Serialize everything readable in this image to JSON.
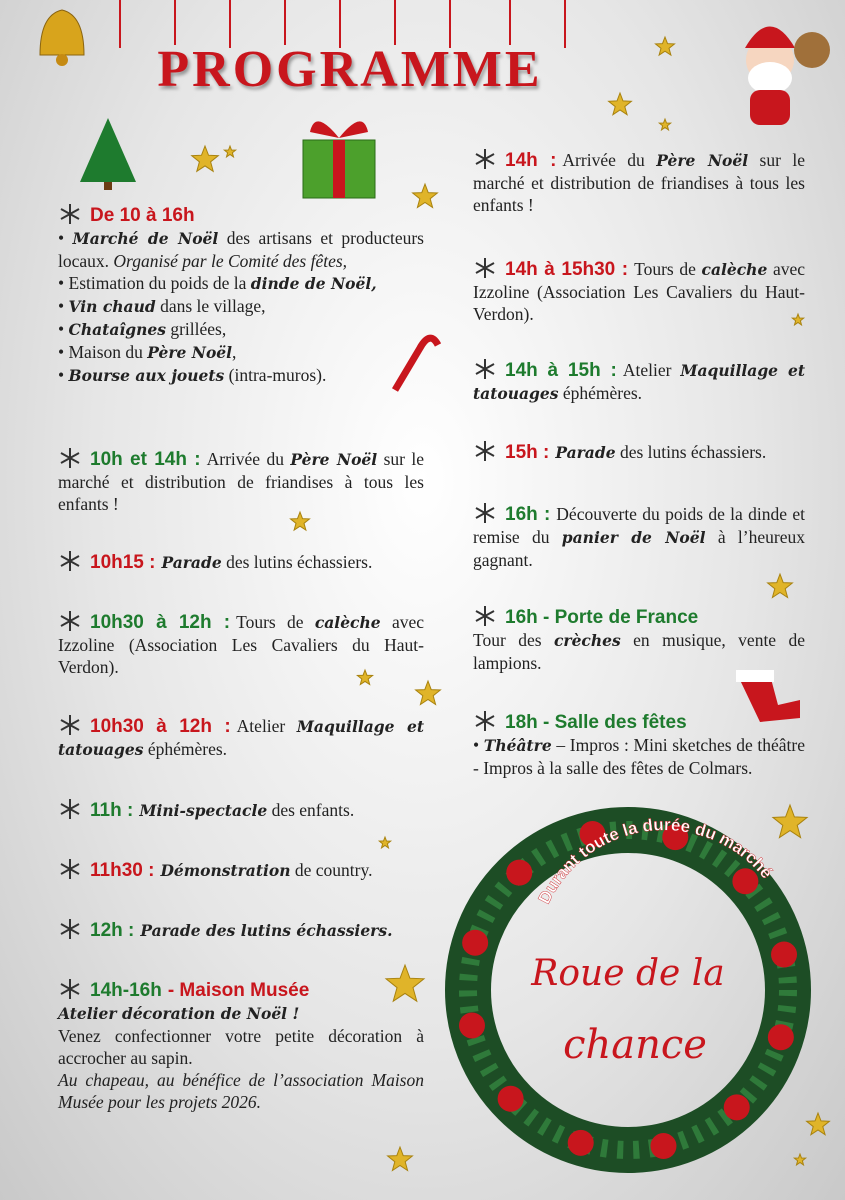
{
  "title": "PROGRAMME",
  "left": [
    {
      "lines": [
        [
          {
            "h": "De 10 à 16h",
            "color": "#c8161d"
          }
        ],
        [
          "• ",
          {
            "b": "Marché de Noël"
          },
          " des artisans et producteurs locaux. ",
          {
            "i": "Organisé par le Comité des fêtes,"
          }
        ],
        [
          "• Estimation du poids de la ",
          {
            "b": "dinde de Noël,"
          }
        ],
        [
          "• ",
          {
            "b": "Vin chaud"
          },
          " dans le village,"
        ],
        [
          "• ",
          {
            "b": "Chataîgnes"
          },
          " grillées,"
        ],
        [
          "• Maison du ",
          {
            "b": "Père Noël"
          },
          ","
        ],
        [
          "• ",
          {
            "b": "Bourse aux jouets"
          },
          " (intra-muros)."
        ]
      ]
    },
    {
      "lines": [
        [
          {
            "h": "10h et 14h :",
            "color": "#1e7b2e"
          },
          "Arrivée du ",
          {
            "b": "Père Noël"
          },
          " sur le marché et distribution de friandises à tous les enfants !"
        ]
      ]
    },
    {
      "lines": [
        [
          {
            "h": "10h15 :",
            "color": "#c8161d"
          },
          {
            "b": "Parade"
          },
          " des lutins échassiers."
        ]
      ]
    },
    {
      "lines": [
        [
          {
            "h": "10h30 à 12h :",
            "color": "#1e7b2e"
          },
          "Tours de ",
          {
            "b": "calèche"
          },
          " avec Izzoline (Association Les Cavaliers du Haut-Verdon)."
        ]
      ]
    },
    {
      "lines": [
        [
          {
            "h": "10h30 à 12h :",
            "color": "#c8161d"
          },
          "Atelier ",
          {
            "b": "Maquillage et tatouages"
          },
          " éphémères."
        ]
      ]
    },
    {
      "lines": [
        [
          {
            "h": "11h :",
            "color": "#1e7b2e"
          },
          {
            "b": "Mini-spectacle"
          },
          " des enfants."
        ]
      ]
    },
    {
      "lines": [
        [
          {
            "h": "11h30 :",
            "color": "#c8161d"
          },
          {
            "b": "Démonstration"
          },
          " de country."
        ]
      ]
    },
    {
      "lines": [
        [
          {
            "h": "12h :",
            "color": "#1e7b2e"
          },
          {
            "b": "Parade des lutins échassiers."
          }
        ]
      ]
    },
    {
      "lines": [
        [
          {
            "h": "14h-16h",
            "color": "#1e7b2e"
          },
          {
            "h": "- Maison Musée",
            "color": "#c8161d"
          }
        ],
        [
          {
            "b": "Atelier décoration de Noël !"
          }
        ],
        [
          "Venez confectionner votre petite décoration à accrocher au sapin."
        ],
        [
          {
            "i": "Au chapeau, au bénéfice de l’association Maison Musée pour les projets 2026."
          }
        ]
      ]
    }
  ],
  "right": [
    {
      "lines": [
        [
          {
            "h": "14h :",
            "color": "#c8161d"
          },
          "Arrivée du ",
          {
            "b": "Père Noël"
          },
          " sur le marché et distribution de friandises à tous les enfants !"
        ]
      ]
    },
    {
      "lines": [
        [
          {
            "h": "14h à 15h30 :",
            "color": "#c8161d"
          },
          "Tours de ",
          {
            "b": "calèche"
          },
          " avec Izzoline (Association Les Cavaliers du Haut-Verdon)."
        ]
      ]
    },
    {
      "lines": [
        [
          {
            "h": "14h à 15h :",
            "color": "#1e7b2e"
          },
          "Atelier ",
          {
            "b": "Maquillage et tatouages"
          },
          " éphémères."
        ]
      ]
    },
    {
      "lines": [
        [
          {
            "h": "15h :",
            "color": "#c8161d"
          },
          {
            "b": "Parade"
          },
          " des lutins échassiers."
        ]
      ]
    },
    {
      "lines": [
        [
          {
            "h": "16h :",
            "color": "#1e7b2e"
          },
          "Découverte du poids de la dinde et remise du ",
          {
            "b": "panier de Noël"
          },
          " à l’heureux gagnant."
        ]
      ]
    },
    {
      "lines": [
        [
          {
            "h": "16h - Porte de France",
            "color": "#1e7b2e"
          }
        ],
        [
          "Tour des ",
          {
            "b": "crèches"
          },
          " en musique, vente de lampions."
        ]
      ]
    },
    {
      "lines": [
        [
          {
            "h": "18h - Salle des fêtes",
            "color": "#1e7b2e"
          }
        ],
        [
          "• ",
          {
            "b": "Théâtre"
          },
          " – Impros : Mini sketches de théâtre -  Impros à la salle des fêtes de Colmars."
        ]
      ]
    }
  ],
  "wreath": {
    "arc_text": "Durant toute la durée du marché",
    "line1": "Roue de la",
    "line2": "chance"
  }
}
